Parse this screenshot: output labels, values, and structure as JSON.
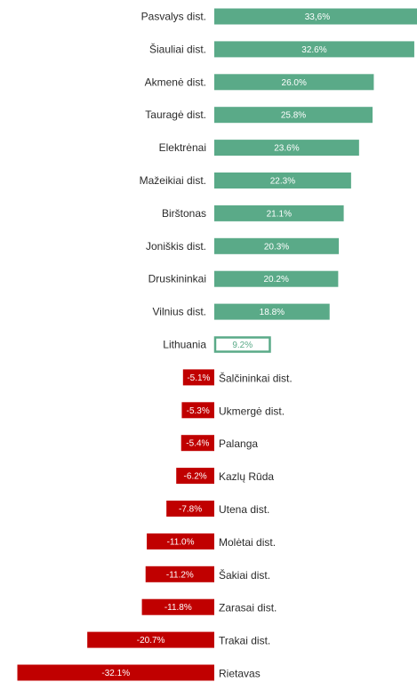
{
  "chart_data": {
    "type": "bar",
    "orientation": "horizontal",
    "categories": [
      "Pasvalys dist.",
      "Šiauliai dist.",
      "Akmenė dist.",
      "Tauragė dist.",
      "Elektrėnai",
      "Mažeikiai dist.",
      "Birštonas",
      "Joniškis dist.",
      "Druskininkai",
      "Vilnius dist.",
      "Lithuania",
      "Šalčininkai dist.",
      "Ukmergė dist.",
      "Palanga",
      "Kazlų Rūda",
      "Utena dist.",
      "Molėtai dist.",
      "Šakiai dist.",
      "Zarasai dist.",
      "Trakai dist.",
      "Rietavas"
    ],
    "values": [
      33.6,
      32.6,
      26.0,
      25.8,
      23.6,
      22.3,
      21.1,
      20.3,
      20.2,
      18.8,
      9.2,
      -5.1,
      -5.3,
      -5.4,
      -6.2,
      -7.8,
      -11.0,
      -11.2,
      -11.8,
      -20.7,
      -32.1
    ],
    "value_labels": [
      "33,6%",
      "32.6%",
      "26.0%",
      "25.8%",
      "23.6%",
      "22.3%",
      "21.1%",
      "20.3%",
      "20.2%",
      "18.8%",
      "9.2%",
      "-5.1%",
      "-5.3%",
      "-5.4%",
      "-6.2%",
      "-7.8%",
      "-11.0%",
      "-11.2%",
      "-11.8%",
      "-20.7%",
      "-32.1%"
    ],
    "highlight_category": "Lithuania",
    "colors": {
      "positive": "#5aaa88",
      "negative": "#c00000",
      "highlight_border": "#5aaa88",
      "highlight_fill": "#ffffff",
      "label_on_bar": "#ffffff",
      "label_highlight": "#5aaa88"
    },
    "grid": false,
    "legend": "none"
  }
}
